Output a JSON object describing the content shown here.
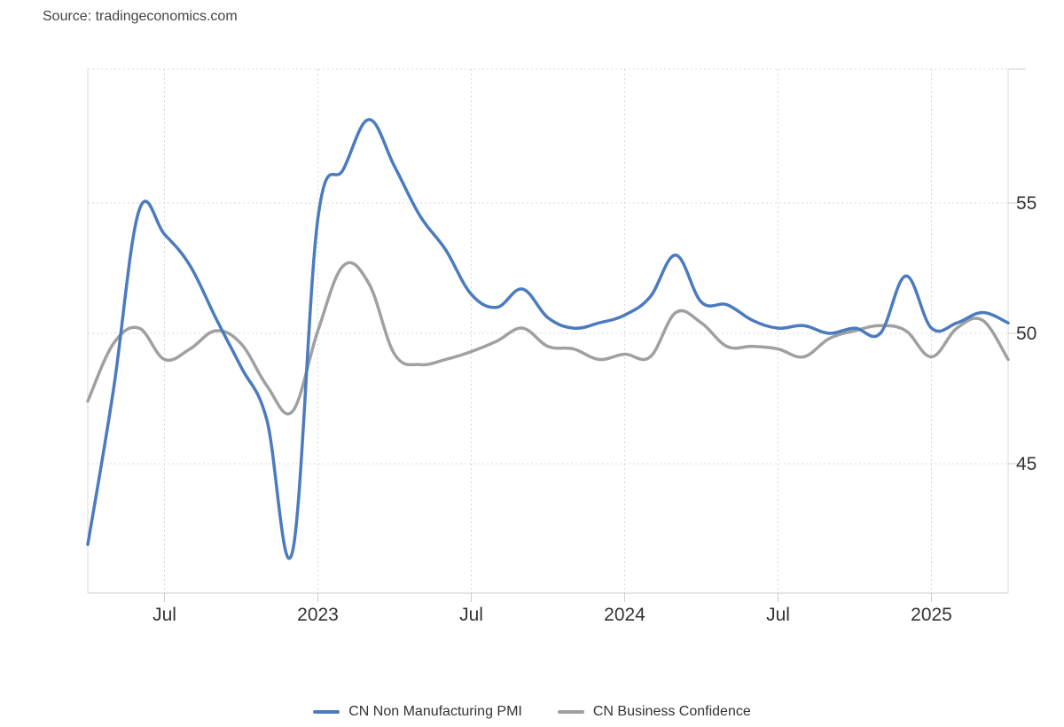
{
  "source": "Source: tradingeconomics.com",
  "chart_data": {
    "type": "line",
    "title": "",
    "xlabel": "",
    "ylabel": "",
    "x": [
      "2022-04",
      "2022-05",
      "2022-06",
      "2022-07",
      "2022-08",
      "2022-09",
      "2022-10",
      "2022-11",
      "2022-12",
      "2023-01",
      "2023-02",
      "2023-03",
      "2023-04",
      "2023-05",
      "2023-06",
      "2023-07",
      "2023-08",
      "2023-09",
      "2023-10",
      "2023-11",
      "2023-12",
      "2024-01",
      "2024-02",
      "2024-03",
      "2024-04",
      "2024-05",
      "2024-06",
      "2024-07",
      "2024-08",
      "2024-09",
      "2024-10",
      "2024-11",
      "2024-12",
      "2025-01",
      "2025-02",
      "2025-03",
      "2025-04"
    ],
    "x_ticks": [
      {
        "label": "Jul",
        "date": "2022-07"
      },
      {
        "label": "2023",
        "date": "2023-01"
      },
      {
        "label": "Jul",
        "date": "2023-07"
      },
      {
        "label": "2024",
        "date": "2024-01"
      },
      {
        "label": "Jul",
        "date": "2024-07"
      },
      {
        "label": "2025",
        "date": "2025-01"
      }
    ],
    "y_ticks": [
      45,
      50,
      55
    ],
    "ylim": [
      40,
      60
    ],
    "grid": true,
    "legend_position": "bottom-center",
    "series": [
      {
        "name": "CN Non Manufacturing PMI",
        "color": "#4b7bbf",
        "values": [
          41.9,
          47.8,
          54.7,
          53.8,
          52.6,
          50.6,
          48.7,
          46.7,
          41.6,
          54.4,
          56.3,
          58.2,
          56.4,
          54.5,
          53.2,
          51.5,
          51.0,
          51.7,
          50.6,
          50.2,
          50.4,
          50.7,
          51.4,
          53.0,
          51.2,
          51.1,
          50.5,
          50.2,
          50.3,
          50.0,
          50.2,
          50.0,
          52.2,
          50.2,
          50.4,
          50.8,
          50.4
        ]
      },
      {
        "name": "CN Business Confidence",
        "color": "#a0a0a0",
        "values": [
          47.4,
          49.6,
          50.2,
          49.0,
          49.4,
          50.1,
          49.6,
          48.0,
          47.0,
          50.1,
          52.6,
          51.9,
          49.2,
          48.8,
          49.0,
          49.3,
          49.7,
          50.2,
          49.5,
          49.4,
          49.0,
          49.2,
          49.1,
          50.8,
          50.4,
          49.5,
          49.5,
          49.4,
          49.1,
          49.8,
          50.1,
          50.3,
          50.1,
          49.1,
          50.2,
          50.5,
          49.0
        ]
      }
    ]
  }
}
